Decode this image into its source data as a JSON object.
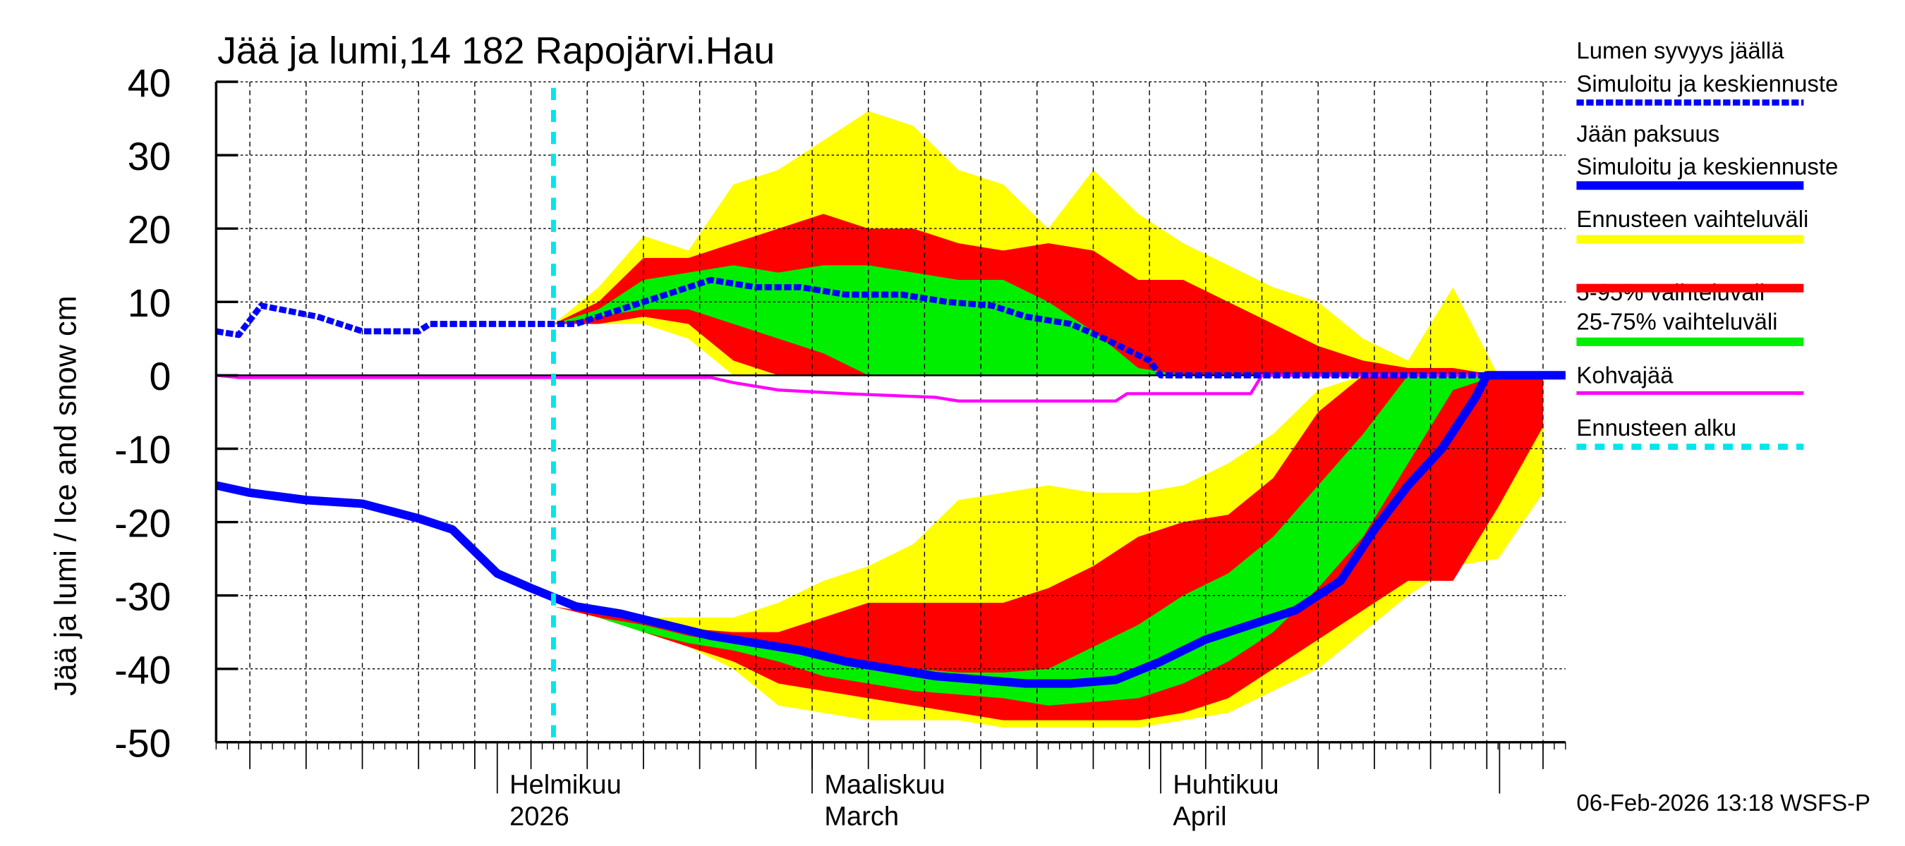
{
  "chart_data": {
    "type": "area",
    "title": "Jää ja lumi,14 182 Rapojärvi.Hau",
    "ylabel": "Jää ja lumi / Ice and snow    cm",
    "ylim": [
      -50,
      40
    ],
    "xlim": [
      "2026-01-07",
      "2026-05-07"
    ],
    "yticks": [
      "40",
      "30",
      "20",
      "10",
      "0",
      "-10",
      "-20",
      "-30",
      "-40",
      "-50"
    ],
    "xtick_labels": [
      {
        "date": "2026-02-01",
        "line1": "Helmikuu",
        "line2": "2026"
      },
      {
        "date": "2026-03-01",
        "line1": "Maaliskuu",
        "line2": "March"
      },
      {
        "date": "2026-04-01",
        "line1": "Huhtikuu",
        "line2": "April"
      }
    ],
    "grid": true,
    "legend_position": "right",
    "forecast_start": "2026-02-06",
    "timestamp": "06-Feb-2026 13:18 WSFS-P",
    "colors": {
      "snow": "#0000ff",
      "ice": "#0000ff",
      "range": "#ffff00",
      "p5_95": "#ff0000",
      "p25_75": "#00ee00",
      "slush": "#ff00ff",
      "forecast_start": "#00e5ee"
    },
    "legend": [
      {
        "line1": "Lumen syvyys jäällä",
        "line2": "Simuloitu ja keskiennuste",
        "style": "dotted-blue"
      },
      {
        "line1": "Jään paksuus",
        "line2": "Simuloitu ja keskiennuste",
        "style": "solid-blue"
      },
      {
        "line1": "Ennusteen vaihteluväli",
        "style": "yellow"
      },
      {
        "line1": "5-95% vaihteluväli",
        "style": "red"
      },
      {
        "line1": "25-75% vaihteluväli",
        "style": "green"
      },
      {
        "line1": "Kohvajää",
        "style": "magenta"
      },
      {
        "line1": "Ennusteen alku",
        "style": "cyan-dashed"
      }
    ],
    "snow_depth": {
      "dates": [
        "2026-01-07",
        "2026-01-09",
        "2026-01-11",
        "2026-01-16",
        "2026-01-20",
        "2026-01-25",
        "2026-01-26",
        "2026-01-31",
        "2026-02-04",
        "2026-02-08",
        "2026-02-12",
        "2026-02-16",
        "2026-02-20",
        "2026-02-24",
        "2026-02-28",
        "2026-03-04",
        "2026-03-09",
        "2026-03-13",
        "2026-03-17",
        "2026-03-20",
        "2026-03-24",
        "2026-03-27",
        "2026-03-31",
        "2026-04-01",
        "2026-05-07"
      ],
      "values": [
        6,
        5.5,
        9.5,
        8,
        6,
        6,
        7,
        7,
        7,
        7,
        9,
        11,
        13,
        12,
        12,
        11,
        11,
        10,
        9.5,
        8,
        7,
        5,
        2,
        0,
        0
      ]
    },
    "ice_thickness": {
      "dates": [
        "2026-01-07",
        "2026-01-10",
        "2026-01-15",
        "2026-01-20",
        "2026-01-25",
        "2026-01-28",
        "2026-02-01",
        "2026-02-04",
        "2026-02-08",
        "2026-02-12",
        "2026-02-16",
        "2026-02-20",
        "2026-02-24",
        "2026-02-28",
        "2026-03-04",
        "2026-03-08",
        "2026-03-12",
        "2026-03-16",
        "2026-03-20",
        "2026-03-24",
        "2026-03-28",
        "2026-04-01",
        "2026-04-05",
        "2026-04-09",
        "2026-04-13",
        "2026-04-17",
        "2026-04-20",
        "2026-04-23",
        "2026-04-26",
        "2026-04-29",
        "2026-04-30",
        "2026-05-07"
      ],
      "values": [
        -15,
        -16,
        -17,
        -17.5,
        -19.5,
        -21,
        -27,
        -29,
        -31.5,
        -32.5,
        -34,
        -35.5,
        -36.5,
        -37.5,
        -39,
        -40,
        -41,
        -41.5,
        -42,
        -42,
        -41.5,
        -39,
        -36,
        -34,
        -32,
        -28,
        -21,
        -15,
        -10,
        -3,
        0,
        0
      ]
    },
    "slush_ice": {
      "dates": [
        "2026-01-07",
        "2026-01-09",
        "2026-02-20",
        "2026-02-22",
        "2026-02-26",
        "2026-03-04",
        "2026-03-12",
        "2026-03-14",
        "2026-03-28",
        "2026-03-29",
        "2026-04-09",
        "2026-04-10",
        "2026-05-07"
      ],
      "values": [
        0,
        -0.3,
        -0.3,
        -1,
        -2,
        -2.5,
        -3,
        -3.5,
        -3.5,
        -2.5,
        -2.5,
        0,
        0
      ]
    },
    "forecast_dates": [
      "2026-02-06",
      "2026-02-10",
      "2026-02-14",
      "2026-02-18",
      "2026-02-22",
      "2026-02-26",
      "2026-03-02",
      "2026-03-06",
      "2026-03-10",
      "2026-03-14",
      "2026-03-18",
      "2026-03-22",
      "2026-03-26",
      "2026-03-30",
      "2026-04-03",
      "2026-04-07",
      "2026-04-11",
      "2026-04-15",
      "2026-04-19",
      "2026-04-23",
      "2026-04-27",
      "2026-05-01",
      "2026-05-05"
    ],
    "snow_bands": {
      "range_max": [
        7,
        12,
        19,
        17,
        26,
        28,
        32,
        36,
        34,
        28,
        26,
        20,
        28,
        22,
        18,
        15,
        12,
        10,
        5,
        2,
        12,
        0,
        0
      ],
      "range_min": [
        7,
        7,
        7,
        5,
        0,
        0,
        0,
        0,
        0,
        0,
        0,
        0,
        0,
        0,
        0,
        0,
        0,
        0,
        0,
        0,
        0,
        0,
        0
      ],
      "p95": [
        7,
        10,
        16,
        16,
        18,
        20,
        22,
        20,
        20,
        18,
        17,
        18,
        17,
        13,
        13,
        10,
        7,
        4,
        2,
        1,
        1,
        0,
        0
      ],
      "p5": [
        7,
        7,
        8,
        7,
        2,
        0,
        0,
        0,
        0,
        0,
        0,
        0,
        0,
        0,
        0,
        0,
        0,
        0,
        0,
        0,
        0,
        0,
        0
      ],
      "p75": [
        7,
        9,
        13,
        14,
        15,
        14,
        15,
        15,
        14,
        13,
        13,
        10,
        6,
        1,
        0,
        0,
        0,
        0,
        0,
        0,
        0,
        0,
        0
      ],
      "p25": [
        7,
        8,
        9,
        9,
        7,
        5,
        3,
        0,
        0,
        0,
        0,
        0,
        0,
        0,
        0,
        0,
        0,
        0,
        0,
        0,
        0,
        0,
        0
      ]
    },
    "ice_bands": {
      "range_max": [
        -31.5,
        -32.5,
        -33,
        -33,
        -33,
        -31,
        -28,
        -26,
        -23,
        -17,
        -16,
        -15,
        -16,
        -16,
        -15,
        -12,
        -8,
        -2,
        0,
        0,
        0,
        0,
        0
      ],
      "range_min": [
        -31.5,
        -33,
        -35,
        -37,
        -40,
        -45,
        -46,
        -47,
        -47,
        -47,
        -48,
        -48,
        -48,
        -48,
        -47,
        -46,
        -43,
        -40,
        -35,
        -30,
        -26,
        -25,
        -16
      ],
      "p95": [
        -31.5,
        -32.5,
        -33.5,
        -34.5,
        -35,
        -35,
        -33,
        -31,
        -31,
        -31,
        -31,
        -29,
        -26,
        -22,
        -20,
        -19,
        -14,
        -5,
        0,
        0,
        0,
        0,
        0
      ],
      "p5": [
        -31.5,
        -33,
        -35,
        -37,
        -39,
        -42,
        -43,
        -44,
        -45,
        -46,
        -47,
        -47,
        -47,
        -47,
        -46,
        -44,
        -40,
        -36,
        -32,
        -28,
        -28,
        -18,
        -7
      ],
      "p75": [
        -31.5,
        -33,
        -34,
        -35.5,
        -36.5,
        -37.5,
        -38.5,
        -39.5,
        -40,
        -40.5,
        -40.5,
        -40,
        -37,
        -34,
        -30,
        -27,
        -22,
        -15,
        -8,
        0,
        0,
        0,
        0
      ],
      "p25": [
        -31.5,
        -33,
        -35,
        -36.5,
        -37.5,
        -39,
        -41,
        -42,
        -43,
        -43.5,
        -44,
        -45,
        -44.5,
        -44,
        -42,
        -39,
        -35,
        -29,
        -22,
        -12,
        -2,
        0,
        0
      ]
    }
  }
}
